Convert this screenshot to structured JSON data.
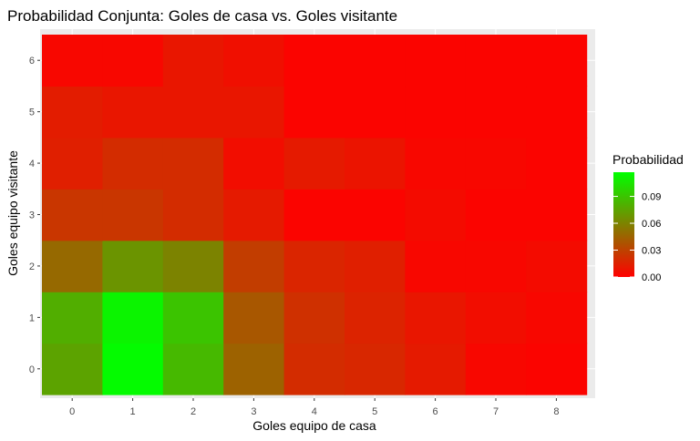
{
  "chart_data": {
    "type": "heatmap",
    "title": "Probabilidad Conjunta: Goles de casa vs. Goles visitante",
    "xlabel": "Goles equipo de casa",
    "ylabel": "Goles equipo visitante",
    "x": [
      "0",
      "1",
      "2",
      "3",
      "4",
      "5",
      "6",
      "7",
      "8"
    ],
    "y": [
      "0",
      "1",
      "2",
      "3",
      "4",
      "5",
      "6"
    ],
    "values": [
      [
        0.075,
        0.115,
        0.085,
        0.045,
        0.02,
        0.018,
        0.012,
        0.003,
        0.002
      ],
      [
        0.08,
        0.112,
        0.09,
        0.04,
        0.022,
        0.016,
        0.01,
        0.006,
        0.003
      ],
      [
        0.048,
        0.068,
        0.06,
        0.028,
        0.017,
        0.014,
        0.003,
        0.003,
        0.005
      ],
      [
        0.025,
        0.025,
        0.02,
        0.012,
        0.002,
        0.002,
        0.005,
        0.002,
        0.002
      ],
      [
        0.014,
        0.02,
        0.02,
        0.006,
        0.012,
        0.009,
        0.003,
        0.003,
        0.002
      ],
      [
        0.013,
        0.01,
        0.01,
        0.01,
        0.002,
        0.002,
        0.002,
        0.002,
        0.002
      ],
      [
        0.003,
        0.003,
        0.01,
        0.007,
        0.002,
        0.002,
        0.002,
        0.002,
        0.002
      ]
    ],
    "color_scale": {
      "low": "#ff0000",
      "high": "#00ff00",
      "min": 0,
      "max": 0.117
    },
    "legend": {
      "title": "Probabilidad",
      "position": "right",
      "ticks": [
        0.0,
        0.03,
        0.06,
        0.09
      ],
      "tick_labels": [
        "0.00",
        "0.03",
        "0.06",
        "0.09"
      ]
    },
    "panel_background": "#ebebeb",
    "grid": true
  }
}
